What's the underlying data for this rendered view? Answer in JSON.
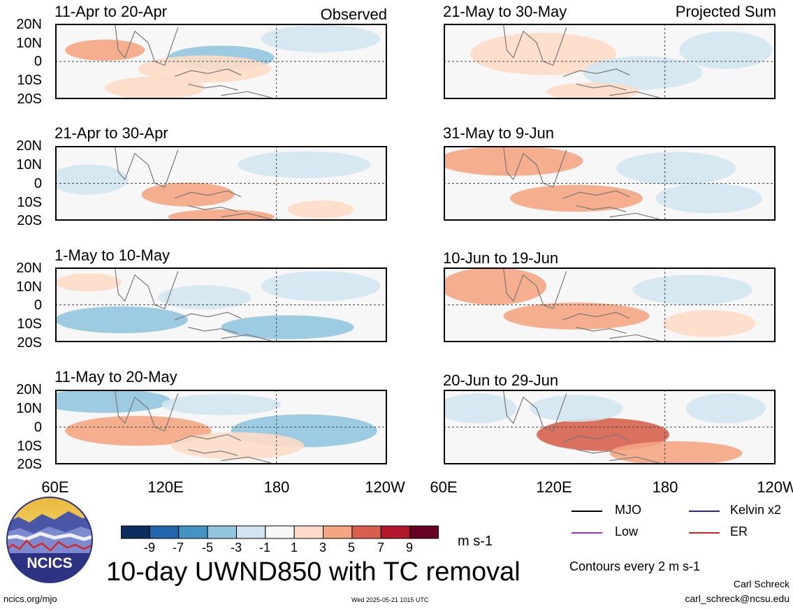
{
  "panels": [
    {
      "title": "11-Apr to 20-Apr",
      "corner": "Observed"
    },
    {
      "title": "21-Apr to 30-Apr",
      "corner": ""
    },
    {
      "title": "1-May to 10-May",
      "corner": ""
    },
    {
      "title": "11-May to 20-May",
      "corner": ""
    },
    {
      "title": "21-May to 30-May",
      "corner": "Projected Sum"
    },
    {
      "title": "31-May to 9-Jun",
      "corner": ""
    },
    {
      "title": "10-Jun to 19-Jun",
      "corner": ""
    },
    {
      "title": "20-Jun to 29-Jun",
      "corner": ""
    }
  ],
  "lat_labels": [
    "20N",
    "10N",
    "0",
    "10S",
    "20S"
  ],
  "lon_labels": [
    "60E",
    "120E",
    "180",
    "120W"
  ],
  "colorbar": {
    "colors": [
      "#0b2e5c",
      "#2166ac",
      "#4393c3",
      "#92c5de",
      "#d1e5f0",
      "#f7f7f7",
      "#fddbc7",
      "#f4a582",
      "#d6604d",
      "#b2182b",
      "#67001f"
    ],
    "labels": [
      "-9",
      "-7",
      "-5",
      "-3",
      "-1",
      "1",
      "3",
      "5",
      "7",
      "9"
    ],
    "units": "m s-1"
  },
  "legend": [
    {
      "label": "MJO",
      "color": "#000000"
    },
    {
      "label": "Kelvin x2",
      "color": "#1f1fd6"
    },
    {
      "label": "Low",
      "color": "#9b30d9"
    },
    {
      "label": "ER",
      "color": "#d62020"
    }
  ],
  "main_title": "10-day UWND850 with TC removal",
  "contours_note": "Contours every 2 m s-1",
  "author": "Carl Schreck",
  "email": "carl_schreck@ncsu.edu",
  "website": "ncics.org/mjo",
  "timestamp": "Wed 2025-05-21 1015 UTC",
  "logo_text": "NCICS"
}
